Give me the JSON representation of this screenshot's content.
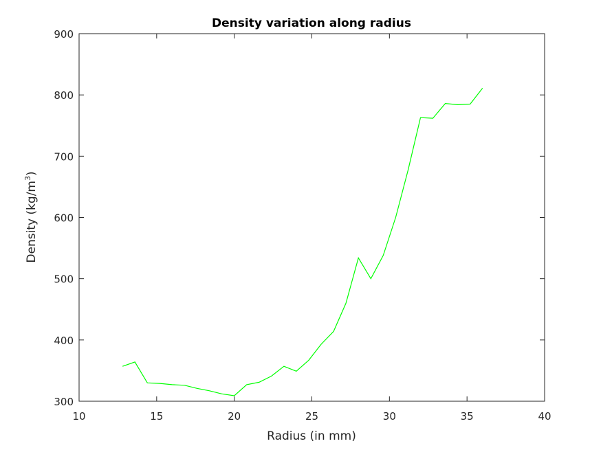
{
  "chart_data": {
    "type": "line",
    "title": "Density variation along radius",
    "xlabel": "Radius (in mm)",
    "ylabel": "Density (kg/m",
    "ylabel_superscript": "3",
    "ylabel_suffix": ")",
    "xlim": [
      10,
      40
    ],
    "ylim": [
      300,
      900
    ],
    "xticks": [
      10,
      15,
      20,
      25,
      30,
      35,
      40
    ],
    "yticks": [
      300,
      400,
      500,
      600,
      700,
      800,
      900
    ],
    "xtick_labels": [
      "10",
      "15",
      "20",
      "25",
      "30",
      "35",
      "40"
    ],
    "ytick_labels": [
      "300",
      "400",
      "500",
      "600",
      "700",
      "800",
      "900"
    ],
    "grid": false,
    "series": [
      {
        "color": "#00ff00",
        "x": [
          12.8,
          13.6,
          14.4,
          15.2,
          16.0,
          16.8,
          17.6,
          18.4,
          19.2,
          20.0,
          20.8,
          21.6,
          22.4,
          23.2,
          24.0,
          24.8,
          25.6,
          26.4,
          27.2,
          28.0,
          28.8,
          29.6,
          30.4,
          31.2,
          32.0,
          32.8,
          33.6,
          34.4,
          35.2,
          36.0
        ],
        "y": [
          357,
          364,
          330,
          329,
          327,
          326,
          321,
          317,
          312,
          309,
          327,
          331,
          341,
          357,
          349,
          367,
          393,
          414,
          460,
          534,
          500,
          538,
          600,
          677,
          763,
          762,
          786,
          784,
          785,
          811
        ]
      }
    ]
  }
}
